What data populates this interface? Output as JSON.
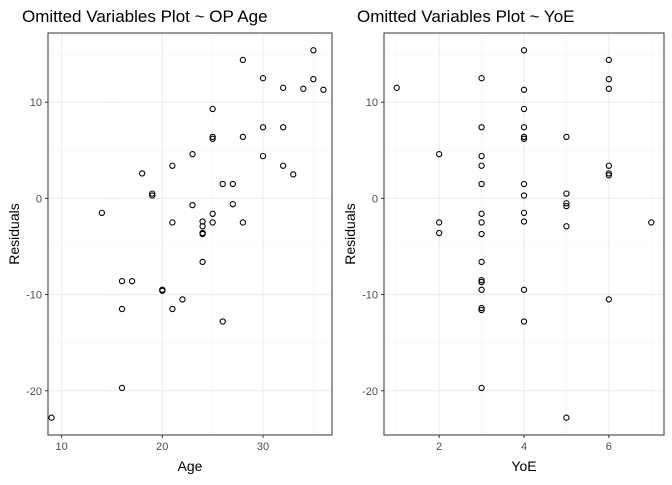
{
  "chart_data": [
    {
      "type": "scatter",
      "title": "Omitted Variables Plot ~ OP Age",
      "xlabel": "Age",
      "ylabel": "Residuals",
      "xlim": [
        8.65,
        36.85
      ],
      "ylim": [
        -24.6,
        17.2
      ],
      "xticks": [
        10,
        20,
        30
      ],
      "yticks": [
        -20,
        -10,
        0,
        10
      ],
      "xtick_labels": [
        "10",
        "20",
        "30"
      ],
      "ytick_labels": [
        "-20",
        "-10",
        "0",
        "10"
      ],
      "grid": true,
      "points": [
        {
          "x": 9,
          "y": -22.8
        },
        {
          "x": 14,
          "y": -1.5
        },
        {
          "x": 16,
          "y": -8.6
        },
        {
          "x": 16,
          "y": -11.5
        },
        {
          "x": 16,
          "y": -19.7
        },
        {
          "x": 17,
          "y": -8.6
        },
        {
          "x": 18,
          "y": 2.6
        },
        {
          "x": 19,
          "y": 0.5
        },
        {
          "x": 19,
          "y": 0.3
        },
        {
          "x": 20,
          "y": -9.5
        },
        {
          "x": 20,
          "y": -9.6
        },
        {
          "x": 21,
          "y": 3.4
        },
        {
          "x": 21,
          "y": -2.5
        },
        {
          "x": 21,
          "y": -11.5
        },
        {
          "x": 22,
          "y": -10.5
        },
        {
          "x": 23,
          "y": 4.6
        },
        {
          "x": 23,
          "y": -0.7
        },
        {
          "x": 24,
          "y": -2.4
        },
        {
          "x": 24,
          "y": -2.9
        },
        {
          "x": 24,
          "y": -3.6
        },
        {
          "x": 24,
          "y": -3.7
        },
        {
          "x": 24,
          "y": -6.6
        },
        {
          "x": 25,
          "y": 9.3
        },
        {
          "x": 25,
          "y": 6.4
        },
        {
          "x": 25,
          "y": 6.2
        },
        {
          "x": 25,
          "y": -1.6
        },
        {
          "x": 25,
          "y": -2.5
        },
        {
          "x": 26,
          "y": 1.5
        },
        {
          "x": 26,
          "y": -12.8
        },
        {
          "x": 27,
          "y": 1.5
        },
        {
          "x": 27,
          "y": -0.6
        },
        {
          "x": 28,
          "y": 14.4
        },
        {
          "x": 28,
          "y": 6.4
        },
        {
          "x": 28,
          "y": -2.5
        },
        {
          "x": 30,
          "y": 12.5
        },
        {
          "x": 30,
          "y": 7.4
        },
        {
          "x": 30,
          "y": 4.4
        },
        {
          "x": 32,
          "y": 11.5
        },
        {
          "x": 32,
          "y": 7.4
        },
        {
          "x": 32,
          "y": 3.4
        },
        {
          "x": 33,
          "y": 2.5
        },
        {
          "x": 34,
          "y": 11.4
        },
        {
          "x": 35,
          "y": 15.4
        },
        {
          "x": 35,
          "y": 12.4
        },
        {
          "x": 36,
          "y": 11.3
        }
      ]
    },
    {
      "type": "scatter",
      "title": "Omitted Variables Plot ~ YoE",
      "xlabel": "YoE",
      "ylabel": "Residuals",
      "xlim": [
        0.7,
        7.3
      ],
      "ylim": [
        -24.6,
        17.2
      ],
      "xticks": [
        2,
        4,
        6
      ],
      "yticks": [
        -20,
        -10,
        0,
        10
      ],
      "xtick_labels": [
        "2",
        "4",
        "6"
      ],
      "ytick_labels": [
        "-20",
        "-10",
        "0",
        "10"
      ],
      "grid": true,
      "points": [
        {
          "x": 1,
          "y": 11.5
        },
        {
          "x": 2,
          "y": 4.6
        },
        {
          "x": 2,
          "y": -2.5
        },
        {
          "x": 2,
          "y": -3.6
        },
        {
          "x": 3,
          "y": 12.5
        },
        {
          "x": 3,
          "y": 7.4
        },
        {
          "x": 3,
          "y": 4.4
        },
        {
          "x": 3,
          "y": 3.4
        },
        {
          "x": 3,
          "y": 1.5
        },
        {
          "x": 3,
          "y": -1.6
        },
        {
          "x": 3,
          "y": -2.5
        },
        {
          "x": 3,
          "y": -3.7
        },
        {
          "x": 3,
          "y": -6.6
        },
        {
          "x": 3,
          "y": -8.5
        },
        {
          "x": 3,
          "y": -8.7
        },
        {
          "x": 3,
          "y": -9.5
        },
        {
          "x": 3,
          "y": -11.4
        },
        {
          "x": 3,
          "y": -11.6
        },
        {
          "x": 3,
          "y": -19.7
        },
        {
          "x": 4,
          "y": 15.4
        },
        {
          "x": 4,
          "y": 11.3
        },
        {
          "x": 4,
          "y": 9.3
        },
        {
          "x": 4,
          "y": 7.4
        },
        {
          "x": 4,
          "y": 6.4
        },
        {
          "x": 4,
          "y": 6.2
        },
        {
          "x": 4,
          "y": 1.5
        },
        {
          "x": 4,
          "y": 0.3
        },
        {
          "x": 4,
          "y": -1.5
        },
        {
          "x": 4,
          "y": -2.4
        },
        {
          "x": 4,
          "y": -9.5
        },
        {
          "x": 4,
          "y": -12.8
        },
        {
          "x": 5,
          "y": 6.4
        },
        {
          "x": 5,
          "y": 0.5
        },
        {
          "x": 5,
          "y": -0.5
        },
        {
          "x": 5,
          "y": -0.8
        },
        {
          "x": 5,
          "y": -2.9
        },
        {
          "x": 5,
          "y": -22.8
        },
        {
          "x": 6,
          "y": 14.4
        },
        {
          "x": 6,
          "y": 12.4
        },
        {
          "x": 6,
          "y": 11.4
        },
        {
          "x": 6,
          "y": 3.4
        },
        {
          "x": 6,
          "y": 2.6
        },
        {
          "x": 6,
          "y": 2.4
        },
        {
          "x": 6,
          "y": -10.5
        },
        {
          "x": 7,
          "y": -2.5
        }
      ]
    }
  ]
}
